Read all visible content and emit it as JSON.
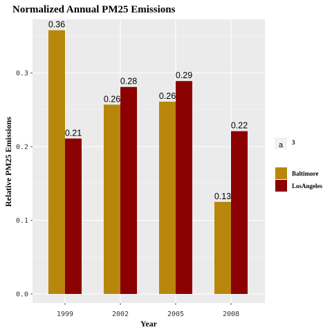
{
  "chart_data": {
    "type": "bar",
    "title": "Normalized Annual PM25 Emissions",
    "xlabel": "Year",
    "ylabel": "Relative PM25 Emissions",
    "categories": [
      "1999",
      "2002",
      "2005",
      "2008"
    ],
    "series": [
      {
        "name": "Baltimore",
        "color": "#B8860B",
        "values": [
          0.358,
          0.257,
          0.261,
          0.125
        ],
        "labels": [
          "0.36",
          "0.26",
          "0.26",
          "0.13"
        ]
      },
      {
        "name": "LosAngeles",
        "color": "#8B0000",
        "values": [
          0.211,
          0.281,
          0.289,
          0.221
        ],
        "labels": [
          "0.21",
          "0.28",
          "0.29",
          "0.22"
        ]
      }
    ],
    "ylim": [
      0,
      0.38
    ],
    "yticks": [
      0.0,
      0.1,
      0.2,
      0.3
    ],
    "ytick_labels": [
      "0.0",
      "0.1",
      "0.2",
      "0.3"
    ],
    "grid": true,
    "background": "#EBEBEB",
    "legend": {
      "placement": "right",
      "label_key": {
        "glyph": "a",
        "title": "3"
      },
      "entries": [
        "Baltimore",
        "LosAngeles"
      ]
    }
  }
}
